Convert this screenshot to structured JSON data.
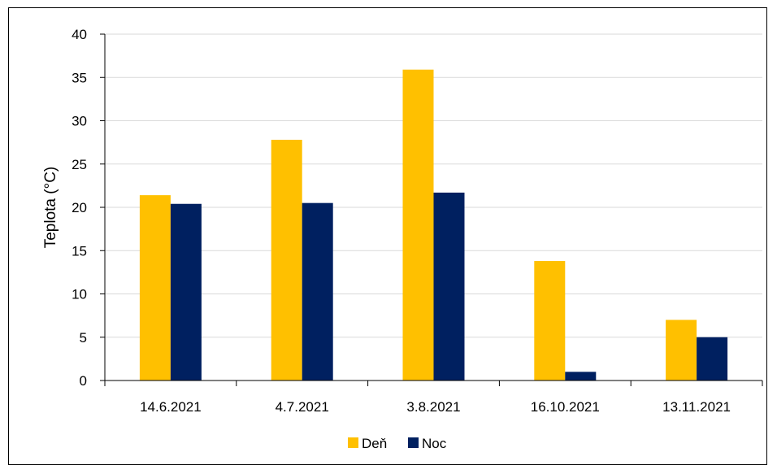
{
  "chart_data": {
    "type": "bar",
    "title": "",
    "xlabel": "",
    "ylabel": "Teplota (°C)",
    "categories": [
      "14.6.2021",
      "4.7.2021",
      "3.8.2021",
      "16.10.2021",
      "13.11.2021"
    ],
    "series": [
      {
        "name": "Deň",
        "color": "#FFC000",
        "values": [
          21.4,
          27.8,
          35.9,
          13.8,
          7.0
        ]
      },
      {
        "name": "Noc",
        "color": "#002060",
        "values": [
          20.4,
          20.5,
          21.7,
          1.0,
          5.0
        ]
      }
    ],
    "ylim": [
      0,
      40
    ],
    "yticks": [
      "0",
      "5",
      "10",
      "15",
      "20",
      "25",
      "30",
      "35",
      "40"
    ],
    "grid": true,
    "legend": "bottom"
  }
}
